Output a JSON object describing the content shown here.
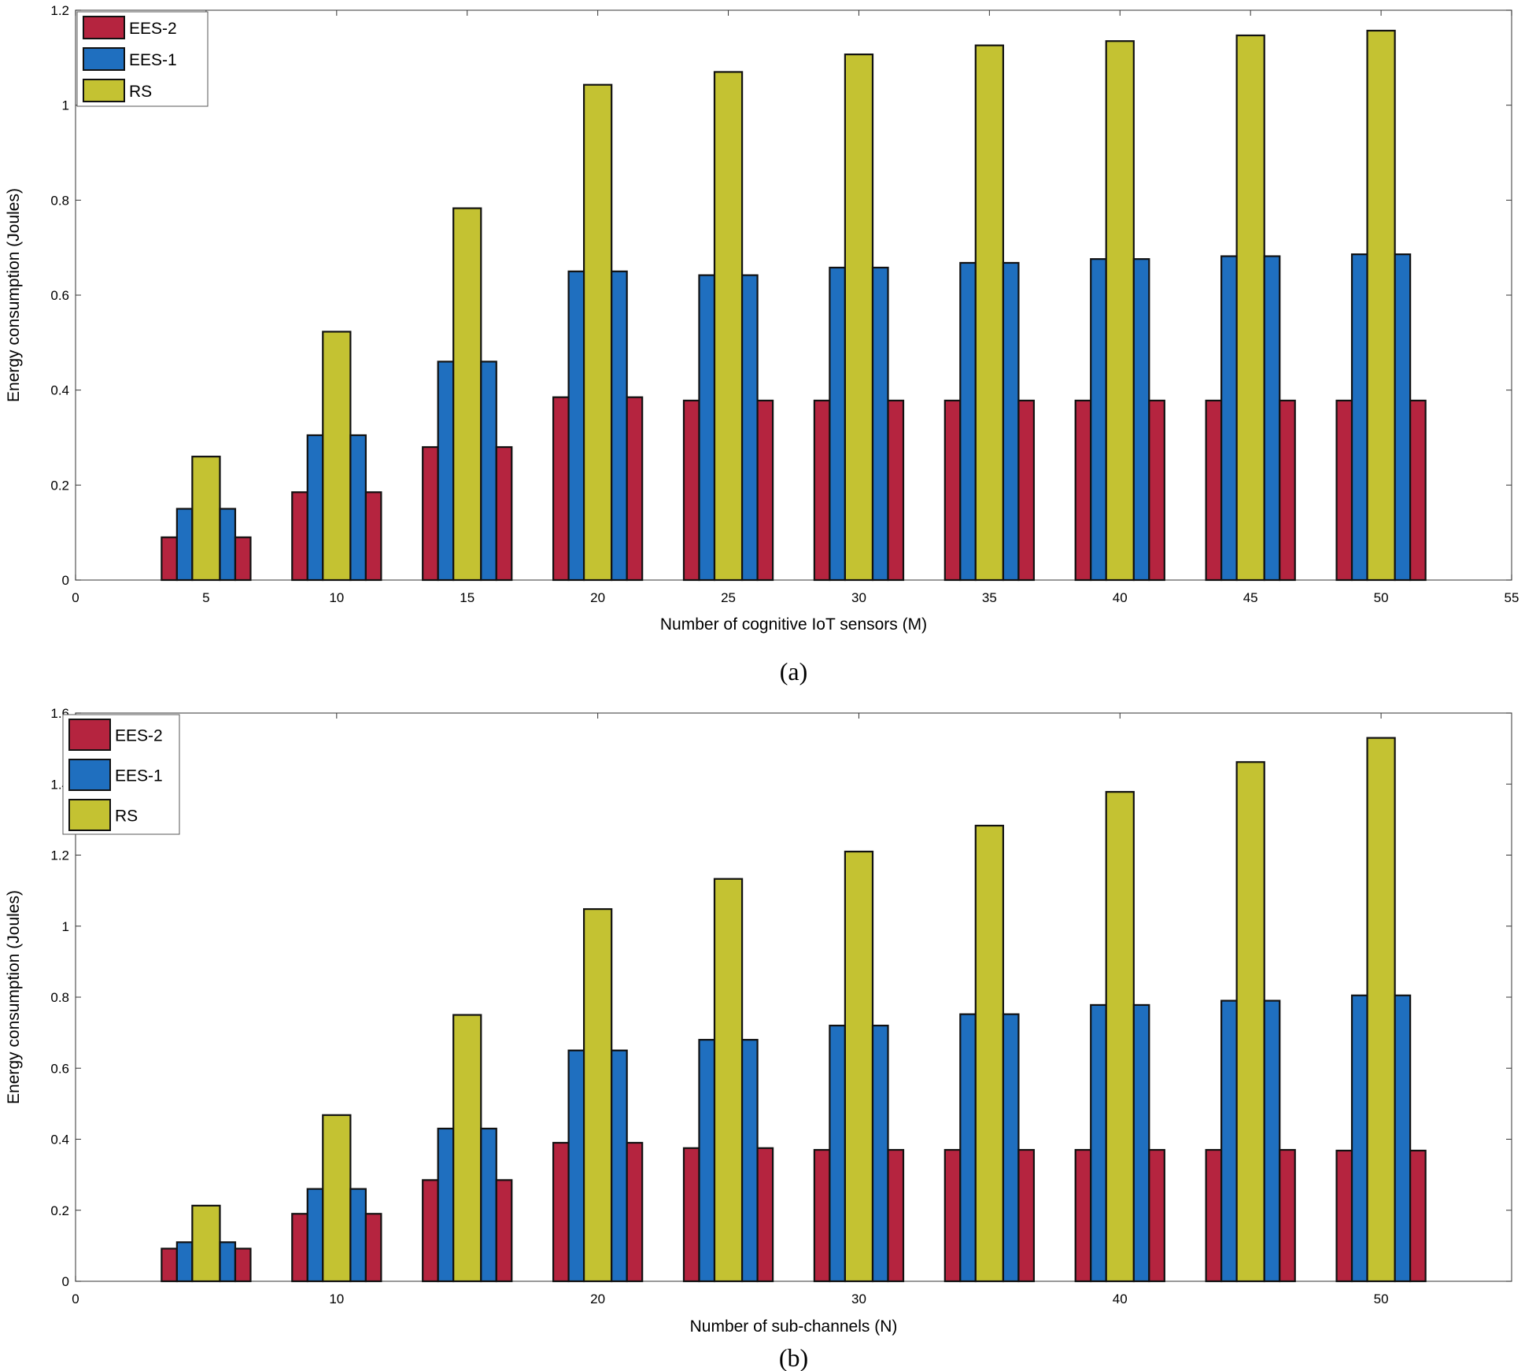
{
  "chart_data": [
    {
      "type": "bar",
      "caption": "(a)",
      "xlabel": "Number of cognitive IoT sensors (M)",
      "ylabel": "Energy consumption (Joules)",
      "xlim": [
        0,
        55
      ],
      "ylim": [
        0,
        1.2
      ],
      "xticks": [
        0,
        5,
        10,
        15,
        20,
        25,
        30,
        35,
        40,
        45,
        50,
        55
      ],
      "yticks": [
        0,
        0.2,
        0.4,
        0.6,
        0.8,
        1,
        1.2
      ],
      "ytick_labels": [
        "0",
        "0.2",
        "0.4",
        "0.6",
        "0.8",
        "1",
        "1.2"
      ],
      "legend_position": "top-left",
      "categories": [
        5,
        10,
        15,
        20,
        25,
        30,
        35,
        40,
        45,
        50
      ],
      "series": [
        {
          "name": "EES-2",
          "color": "#b5243f",
          "values": [
            0.09,
            0.185,
            0.28,
            0.385,
            0.378,
            0.378,
            0.378,
            0.378,
            0.378,
            0.378
          ]
        },
        {
          "name": "EES-1",
          "color": "#1f6fbf",
          "values": [
            0.15,
            0.305,
            0.46,
            0.65,
            0.642,
            0.658,
            0.668,
            0.676,
            0.682,
            0.686
          ]
        },
        {
          "name": "RS",
          "color": "#c4c232",
          "values": [
            0.26,
            0.523,
            0.783,
            1.043,
            1.07,
            1.107,
            1.126,
            1.135,
            1.147,
            1.157
          ]
        }
      ]
    },
    {
      "type": "bar",
      "caption": "(b)",
      "xlabel": "Number of sub-channels (N)",
      "ylabel": "Energy consumption (Joules)",
      "xlim": [
        0,
        55
      ],
      "ylim": [
        0,
        1.6
      ],
      "xticks": [
        0,
        10,
        20,
        30,
        40,
        50
      ],
      "yticks": [
        0,
        0.2,
        0.4,
        0.6,
        0.8,
        1,
        1.2,
        1.4,
        1.6
      ],
      "ytick_labels": [
        "0",
        "0.2",
        "0.4",
        "0.6",
        "0.8",
        "1",
        "1.2",
        "1.4",
        "1.6"
      ],
      "legend_position": "top-left",
      "categories": [
        5,
        10,
        15,
        20,
        25,
        30,
        35,
        40,
        45,
        50
      ],
      "series": [
        {
          "name": "EES-2",
          "color": "#b5243f",
          "values": [
            0.092,
            0.19,
            0.285,
            0.39,
            0.375,
            0.37,
            0.37,
            0.37,
            0.37,
            0.368
          ]
        },
        {
          "name": "EES-1",
          "color": "#1f6fbf",
          "values": [
            0.11,
            0.26,
            0.43,
            0.65,
            0.68,
            0.72,
            0.752,
            0.778,
            0.79,
            0.805
          ]
        },
        {
          "name": "RS",
          "color": "#c4c232",
          "values": [
            0.213,
            0.468,
            0.75,
            1.048,
            1.133,
            1.21,
            1.283,
            1.378,
            1.462,
            1.53
          ]
        }
      ]
    }
  ]
}
